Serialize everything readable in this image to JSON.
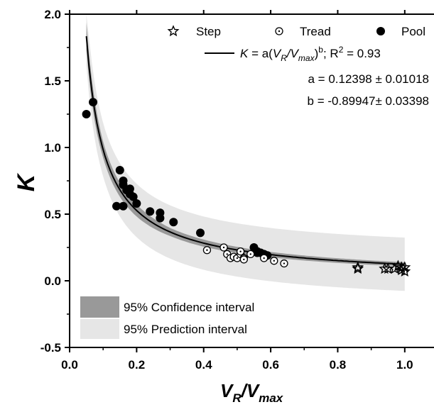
{
  "chart_data": {
    "type": "scatter",
    "xlabel": {
      "main": "V",
      "sub1": "R",
      "sep": "/V",
      "sub2": "max"
    },
    "ylabel": "K",
    "xlim": [
      0.0,
      1.1
    ],
    "ylim": [
      -0.5,
      2.0
    ],
    "x_ticks": [
      "0.0",
      "0.2",
      "0.4",
      "0.6",
      "0.8",
      "1.0"
    ],
    "x_tick_values": [
      0.0,
      0.2,
      0.4,
      0.6,
      0.8,
      1.0
    ],
    "y_ticks": [
      "2.0",
      "1.5",
      "1.0",
      "0.5",
      "0.0",
      "-0.5"
    ],
    "y_tick_values": [
      2.0,
      1.5,
      1.0,
      0.5,
      0.0,
      -0.5
    ],
    "grid": false,
    "legend_position": "top-right",
    "legend": {
      "step": "Step",
      "tread": "Tread",
      "pool": "Pool",
      "fit_prefix": "K",
      "fit_formula": " = a(",
      "fit_vr": "V",
      "fit_vr_sub": "R",
      "fit_slash": "/V",
      "fit_vmax_sub": "max",
      "fit_close": ")",
      "fit_exp": "b",
      "fit_r2_label": "; R",
      "fit_r2_exp": "2",
      "fit_r2_value": " = 0.93",
      "a_param": "a = 0.12398 ± 0.01018",
      "b_param": "b = -0.89947± 0.03398"
    },
    "interval_legend": {
      "confidence": "95% Confidence interval",
      "prediction": "95% Prediction interval"
    },
    "fit": {
      "a": 0.12398,
      "b": -0.89947,
      "x_start": 0.05,
      "x_end": 1.0,
      "confidence_halfwidth": [
        0.1,
        0.06,
        0.03,
        0.02,
        0.015
      ],
      "prediction_halfwidth": [
        0.22,
        0.2,
        0.2,
        0.2,
        0.2
      ],
      "band_x": [
        0.05,
        0.1,
        0.3,
        0.6,
        1.0
      ]
    },
    "colors": {
      "fit_line": "#000000",
      "confidence_band": "#999999",
      "prediction_band": "#e6e6e6",
      "pool_marker": "#000000"
    },
    "series": [
      {
        "name": "Pool",
        "marker": "filled-circle",
        "points": [
          [
            0.05,
            1.25
          ],
          [
            0.07,
            1.34
          ],
          [
            0.15,
            0.83
          ],
          [
            0.14,
            0.56
          ],
          [
            0.16,
            0.75
          ],
          [
            0.16,
            0.72
          ],
          [
            0.17,
            0.68
          ],
          [
            0.16,
            0.56
          ],
          [
            0.18,
            0.69
          ],
          [
            0.18,
            0.65
          ],
          [
            0.19,
            0.63
          ],
          [
            0.2,
            0.58
          ],
          [
            0.24,
            0.52
          ],
          [
            0.27,
            0.51
          ],
          [
            0.27,
            0.47
          ],
          [
            0.31,
            0.44
          ],
          [
            0.39,
            0.36
          ],
          [
            0.55,
            0.25
          ],
          [
            0.56,
            0.22
          ],
          [
            0.56,
            0.21
          ],
          [
            0.57,
            0.21
          ],
          [
            0.58,
            0.2
          ],
          [
            0.59,
            0.19
          ]
        ]
      },
      {
        "name": "Tread",
        "marker": "open-circle-dot",
        "points": [
          [
            0.41,
            0.23
          ],
          [
            0.46,
            0.25
          ],
          [
            0.47,
            0.2
          ],
          [
            0.48,
            0.17
          ],
          [
            0.49,
            0.18
          ],
          [
            0.5,
            0.17
          ],
          [
            0.51,
            0.2
          ],
          [
            0.51,
            0.22
          ],
          [
            0.52,
            0.17
          ],
          [
            0.52,
            0.16
          ],
          [
            0.54,
            0.2
          ],
          [
            0.58,
            0.17
          ],
          [
            0.61,
            0.15
          ],
          [
            0.64,
            0.13
          ]
        ]
      },
      {
        "name": "Step",
        "marker": "open-star",
        "points": [
          [
            0.86,
            0.09
          ],
          [
            0.86,
            0.1
          ],
          [
            0.94,
            0.09
          ],
          [
            0.95,
            0.09
          ],
          [
            0.97,
            0.09
          ],
          [
            0.98,
            0.11
          ],
          [
            0.99,
            0.08
          ],
          [
            1.0,
            0.1
          ],
          [
            1.0,
            0.07
          ],
          [
            0.99,
            0.1
          ]
        ]
      }
    ]
  }
}
